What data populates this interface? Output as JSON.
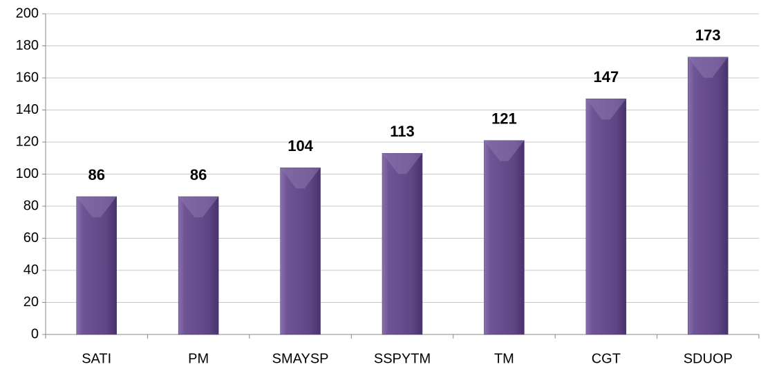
{
  "chart_data": {
    "type": "bar",
    "categories": [
      "SATI",
      "PM",
      "SMAYSP",
      "SSPYTM",
      "TM",
      "CGT",
      "SDUOP"
    ],
    "values": [
      86,
      86,
      104,
      113,
      121,
      147,
      173
    ],
    "color": "#6b5190",
    "ylim": [
      0,
      200
    ],
    "yticks": [
      0,
      20,
      40,
      60,
      80,
      100,
      120,
      140,
      160,
      180,
      200
    ],
    "grid": true
  }
}
